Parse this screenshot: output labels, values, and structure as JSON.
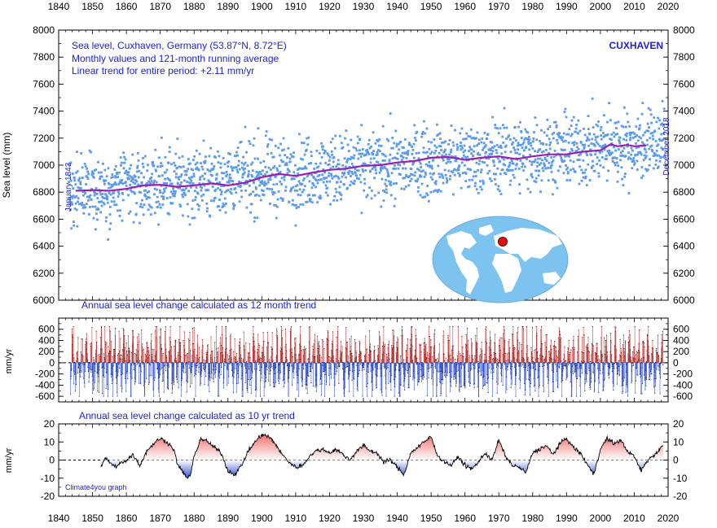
{
  "colors": {
    "monthly": "#5b9bec",
    "running_avg": "#9a1fb0",
    "text_blue": "#1f22d6",
    "pos_fill": "#ef6b6b",
    "neg_fill": "#2f4fd8",
    "ocean": "#7cc3f0",
    "land": "#ffffff",
    "marker": "#e01010"
  },
  "chart_data": [
    {
      "type": "scatter",
      "panel": "sea-level",
      "title_lines": [
        "Sea level, Cuxhaven, Germany (53.87°N, 8.72°E)",
        "Monthly values and 121-month running average",
        "Linear trend for entire period: +2.11 mm/yr"
      ],
      "station_label": "CUXHAVEN",
      "ylabel": "Sea level (mm)",
      "start_label": "January 1843",
      "end_label": "December 2018",
      "xlim": [
        1840,
        2020
      ],
      "xticks": [
        "1840",
        "1850",
        "1860",
        "1870",
        "1880",
        "1890",
        "1900",
        "1910",
        "1920",
        "1930",
        "1940",
        "1950",
        "1960",
        "1970",
        "1980",
        "1990",
        "2000",
        "2010",
        "2020"
      ],
      "ylim": [
        6000,
        8000
      ],
      "yticks": [
        "6000",
        "6200",
        "6400",
        "6600",
        "6800",
        "7000",
        "7200",
        "7400",
        "7600",
        "7800",
        "8000"
      ],
      "monthly_trend": {
        "start": 1843,
        "end": 2019,
        "start_value": 6800,
        "slope_mm_per_yr": 2.11,
        "spread_mm": 130
      },
      "running_average": {
        "x": [
          1845.0,
          1850,
          1855,
          1860,
          1865,
          1870,
          1875,
          1880,
          1885,
          1890,
          1895,
          1900,
          1905,
          1910,
          1915,
          1920,
          1925,
          1930,
          1935,
          1940,
          1945,
          1950,
          1955,
          1960,
          1965,
          1970,
          1975,
          1980,
          1985,
          1990,
          1995,
          2000,
          2003,
          2005,
          2008,
          2010,
          2013.5
        ],
        "y": [
          6810,
          6815,
          6810,
          6825,
          6850,
          6855,
          6840,
          6850,
          6865,
          6850,
          6870,
          6910,
          6935,
          6920,
          6945,
          6965,
          6975,
          6995,
          7000,
          7020,
          7030,
          7055,
          7060,
          7040,
          7055,
          7065,
          7045,
          7065,
          7080,
          7080,
          7100,
          7110,
          7155,
          7140,
          7150,
          7140,
          7145
        ]
      }
    },
    {
      "type": "bar",
      "panel": "annual-change-12mo",
      "title": "Annual sea level change calculated as 12 month trend",
      "ylabel": "mm/yr",
      "ylim": [
        -700,
        800
      ],
      "yticks": [
        "600",
        "400",
        "200",
        "0",
        "-200",
        "-400",
        "-600"
      ],
      "x_range": [
        1843.5,
        2018.5
      ],
      "typical_amplitude_mm_per_yr": [
        -600,
        650
      ]
    },
    {
      "type": "area",
      "panel": "annual-change-10yr",
      "title": "Annual sea level change calculated as 10 yr trend",
      "ylabel": "mm/yr",
      "ylim": [
        -20,
        20
      ],
      "yticks": [
        "20",
        "10",
        "0",
        "-10",
        "-20"
      ],
      "x": [
        1852.5,
        1854,
        1855,
        1856,
        1857,
        1858,
        1860,
        1862,
        1864,
        1866,
        1868,
        1870,
        1872,
        1874,
        1875,
        1876,
        1878,
        1879,
        1880,
        1882,
        1884,
        1886,
        1888,
        1890,
        1892,
        1894,
        1896,
        1898,
        1900,
        1902,
        1904,
        1906,
        1908,
        1910,
        1912,
        1914,
        1916,
        1918,
        1920,
        1922,
        1924,
        1926,
        1928,
        1930,
        1932,
        1934,
        1936,
        1938,
        1940,
        1942,
        1944,
        1946,
        1948,
        1950,
        1952,
        1954,
        1956,
        1958,
        1960,
        1962,
        1964,
        1966,
        1968,
        1970,
        1972,
        1974,
        1976,
        1978,
        1980,
        1982,
        1984,
        1986,
        1988,
        1990,
        1992,
        1994,
        1996,
        1998,
        2000,
        2002,
        2004,
        2006,
        2008,
        2010,
        2012,
        2014,
        2016,
        2018.5
      ],
      "y": [
        -3,
        1,
        -1,
        -3,
        -4,
        -2,
        0,
        3,
        -3,
        5,
        9,
        12,
        10,
        6,
        -2,
        -5,
        -10,
        -8,
        2,
        12,
        10,
        7,
        4,
        -6,
        -8,
        -3,
        5,
        10,
        14,
        13,
        9,
        3,
        -1,
        -4,
        -3,
        2,
        5,
        6,
        4,
        6,
        3,
        0,
        5,
        8,
        5,
        4,
        -1,
        0,
        -4,
        -8,
        4,
        7,
        10,
        13,
        2,
        -1,
        -3,
        2,
        -3,
        -5,
        -1,
        4,
        0,
        11,
        2,
        -3,
        -4,
        -7,
        4,
        6,
        8,
        3,
        9,
        12,
        7,
        4,
        -2,
        -8,
        6,
        12,
        9,
        11,
        5,
        2,
        -6,
        0,
        3,
        8
      ]
    }
  ],
  "credit": "Climate4you graph"
}
